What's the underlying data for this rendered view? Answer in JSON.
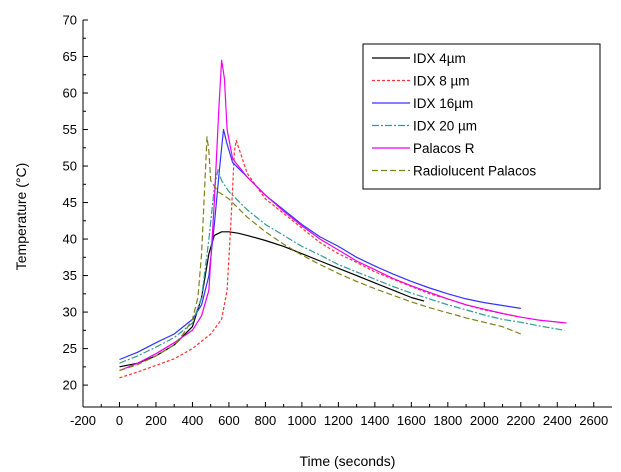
{
  "chart_data": {
    "type": "line",
    "xlabel": "Time (seconds)",
    "ylabel": "Temperature (°C)",
    "xlim": [
      -200,
      2700
    ],
    "ylim": [
      17,
      70
    ],
    "x_ticks": [
      -200,
      0,
      200,
      400,
      600,
      800,
      1000,
      1200,
      1400,
      1600,
      1800,
      2000,
      2200,
      2400,
      2600
    ],
    "y_ticks": [
      20,
      25,
      30,
      35,
      40,
      45,
      50,
      55,
      60,
      65,
      70
    ],
    "grid": false,
    "legend_position": "top-right",
    "series": [
      {
        "name": "IDX 4µm",
        "color": "#000000",
        "dash": "solid",
        "points": [
          [
            0,
            22.5
          ],
          [
            100,
            23.0
          ],
          [
            200,
            24.0
          ],
          [
            300,
            25.5
          ],
          [
            400,
            28.0
          ],
          [
            450,
            32.0
          ],
          [
            490,
            38.0
          ],
          [
            520,
            40.5
          ],
          [
            560,
            41.0
          ],
          [
            600,
            41.0
          ],
          [
            650,
            40.8
          ],
          [
            700,
            40.5
          ],
          [
            800,
            39.8
          ],
          [
            900,
            39.0
          ],
          [
            1000,
            38.0
          ],
          [
            1100,
            37.0
          ],
          [
            1200,
            36.0
          ],
          [
            1300,
            35.0
          ],
          [
            1400,
            34.0
          ],
          [
            1500,
            33.0
          ],
          [
            1600,
            32.0
          ],
          [
            1670,
            31.5
          ]
        ]
      },
      {
        "name": "IDX 8 µm",
        "color": "#ff3333",
        "dash": "3,2",
        "points": [
          [
            0,
            21.0
          ],
          [
            100,
            21.8
          ],
          [
            200,
            22.7
          ],
          [
            300,
            23.6
          ],
          [
            400,
            25.0
          ],
          [
            500,
            27.0
          ],
          [
            560,
            29.0
          ],
          [
            590,
            33.0
          ],
          [
            610,
            42.0
          ],
          [
            630,
            52.0
          ],
          [
            640,
            53.5
          ],
          [
            660,
            52.0
          ],
          [
            700,
            49.0
          ],
          [
            800,
            45.5
          ],
          [
            900,
            43.5
          ],
          [
            1000,
            41.5
          ],
          [
            1100,
            39.5
          ],
          [
            1200,
            38.0
          ],
          [
            1300,
            36.8
          ],
          [
            1400,
            35.5
          ],
          [
            1500,
            34.5
          ],
          [
            1600,
            33.5
          ],
          [
            1700,
            32.5
          ],
          [
            1800,
            31.8
          ],
          [
            1900,
            31.0
          ],
          [
            2000,
            30.3
          ],
          [
            2100,
            29.8
          ],
          [
            2200,
            29.3
          ]
        ]
      },
      {
        "name": "IDX 16µm",
        "color": "#3333ff",
        "dash": "solid",
        "points": [
          [
            0,
            23.5
          ],
          [
            100,
            24.5
          ],
          [
            200,
            25.8
          ],
          [
            300,
            27.0
          ],
          [
            400,
            29.0
          ],
          [
            450,
            31.0
          ],
          [
            490,
            35.0
          ],
          [
            520,
            42.0
          ],
          [
            550,
            50.0
          ],
          [
            570,
            55.0
          ],
          [
            590,
            53.0
          ],
          [
            620,
            50.5
          ],
          [
            700,
            48.5
          ],
          [
            800,
            46.0
          ],
          [
            900,
            44.0
          ],
          [
            1000,
            42.0
          ],
          [
            1100,
            40.3
          ],
          [
            1200,
            39.0
          ],
          [
            1300,
            37.5
          ],
          [
            1400,
            36.3
          ],
          [
            1500,
            35.2
          ],
          [
            1600,
            34.2
          ],
          [
            1700,
            33.3
          ],
          [
            1800,
            32.5
          ],
          [
            1900,
            31.8
          ],
          [
            2000,
            31.3
          ],
          [
            2100,
            30.9
          ],
          [
            2200,
            30.5
          ]
        ]
      },
      {
        "name": "IDX 20 µm",
        "color": "#339999",
        "dash": "7,2,2,2",
        "points": [
          [
            0,
            23.0
          ],
          [
            100,
            24.0
          ],
          [
            200,
            25.2
          ],
          [
            300,
            26.5
          ],
          [
            400,
            28.5
          ],
          [
            450,
            32.0
          ],
          [
            490,
            40.0
          ],
          [
            520,
            47.0
          ],
          [
            540,
            49.5
          ],
          [
            560,
            48.0
          ],
          [
            600,
            46.5
          ],
          [
            700,
            44.0
          ],
          [
            800,
            42.0
          ],
          [
            900,
            40.5
          ],
          [
            1000,
            39.0
          ],
          [
            1100,
            37.8
          ],
          [
            1200,
            36.5
          ],
          [
            1300,
            35.5
          ],
          [
            1400,
            34.5
          ],
          [
            1500,
            33.5
          ],
          [
            1600,
            32.6
          ],
          [
            1700,
            31.8
          ],
          [
            1800,
            31.0
          ],
          [
            1900,
            30.3
          ],
          [
            2000,
            29.6
          ],
          [
            2100,
            29.0
          ],
          [
            2200,
            28.6
          ],
          [
            2300,
            28.1
          ],
          [
            2440,
            27.5
          ]
        ]
      },
      {
        "name": "Palacos R",
        "color": "#ee00ee",
        "dash": "solid",
        "points": [
          [
            0,
            22.0
          ],
          [
            100,
            23.0
          ],
          [
            200,
            24.3
          ],
          [
            300,
            25.8
          ],
          [
            400,
            27.5
          ],
          [
            450,
            29.5
          ],
          [
            490,
            33.0
          ],
          [
            520,
            45.0
          ],
          [
            545,
            58.0
          ],
          [
            560,
            64.5
          ],
          [
            575,
            62.0
          ],
          [
            590,
            55.0
          ],
          [
            620,
            51.0
          ],
          [
            700,
            48.5
          ],
          [
            800,
            46.0
          ],
          [
            900,
            43.8
          ],
          [
            1000,
            41.8
          ],
          [
            1100,
            40.0
          ],
          [
            1200,
            38.5
          ],
          [
            1300,
            37.0
          ],
          [
            1400,
            35.8
          ],
          [
            1500,
            34.6
          ],
          [
            1600,
            33.6
          ],
          [
            1700,
            32.7
          ],
          [
            1800,
            31.8
          ],
          [
            1900,
            31.0
          ],
          [
            2000,
            30.4
          ],
          [
            2100,
            29.8
          ],
          [
            2200,
            29.3
          ],
          [
            2300,
            28.9
          ],
          [
            2450,
            28.5
          ]
        ]
      },
      {
        "name": "Radiolucent Palacos",
        "color": "#808020",
        "dash": "6,3",
        "points": [
          [
            0,
            22.0
          ],
          [
            100,
            22.8
          ],
          [
            200,
            24.0
          ],
          [
            300,
            25.5
          ],
          [
            350,
            27.0
          ],
          [
            400,
            29.0
          ],
          [
            430,
            32.0
          ],
          [
            450,
            38.0
          ],
          [
            465,
            46.0
          ],
          [
            480,
            54.0
          ],
          [
            490,
            52.0
          ],
          [
            500,
            48.0
          ],
          [
            540,
            46.5
          ],
          [
            600,
            45.5
          ],
          [
            700,
            43.0
          ],
          [
            800,
            41.0
          ],
          [
            900,
            39.3
          ],
          [
            1000,
            37.8
          ],
          [
            1100,
            36.5
          ],
          [
            1200,
            35.3
          ],
          [
            1300,
            34.2
          ],
          [
            1400,
            33.2
          ],
          [
            1500,
            32.3
          ],
          [
            1600,
            31.4
          ],
          [
            1700,
            30.6
          ],
          [
            1800,
            29.9
          ],
          [
            1900,
            29.2
          ],
          [
            2000,
            28.6
          ],
          [
            2100,
            28.0
          ],
          [
            2200,
            27.0
          ]
        ]
      }
    ]
  }
}
